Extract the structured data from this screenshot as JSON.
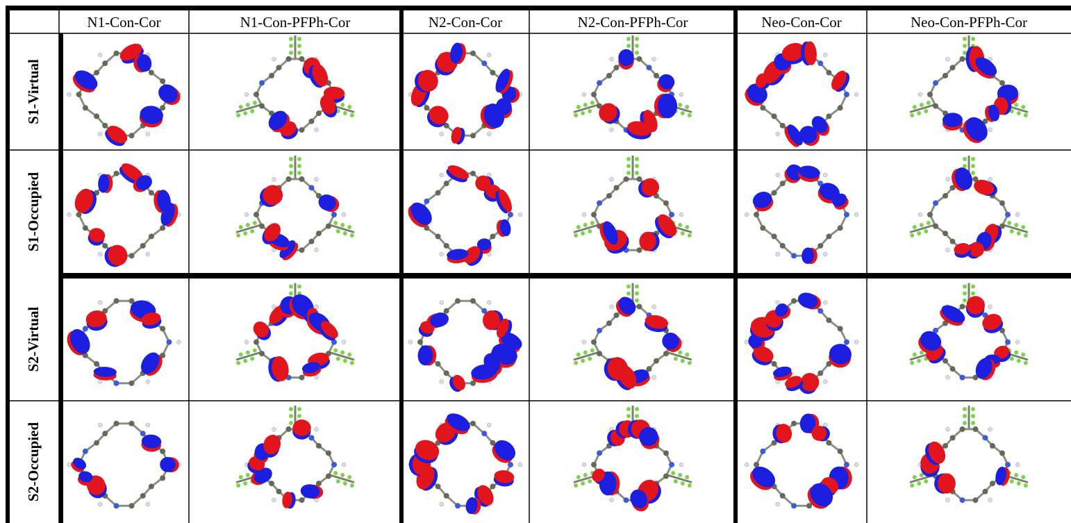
{
  "table": {
    "columns": [
      "N1-Con-Cor",
      "N1-Con-PFPh-Cor",
      "N2-Con-Cor",
      "N2-Con-PFPh-Cor",
      "Neo-Con-Cor",
      "Neo-Con-PFPh-Cor"
    ],
    "rows": [
      "S1-Virtual",
      "S1-Occupied",
      "S2-Virtual",
      "S2-Occupied"
    ]
  }
}
